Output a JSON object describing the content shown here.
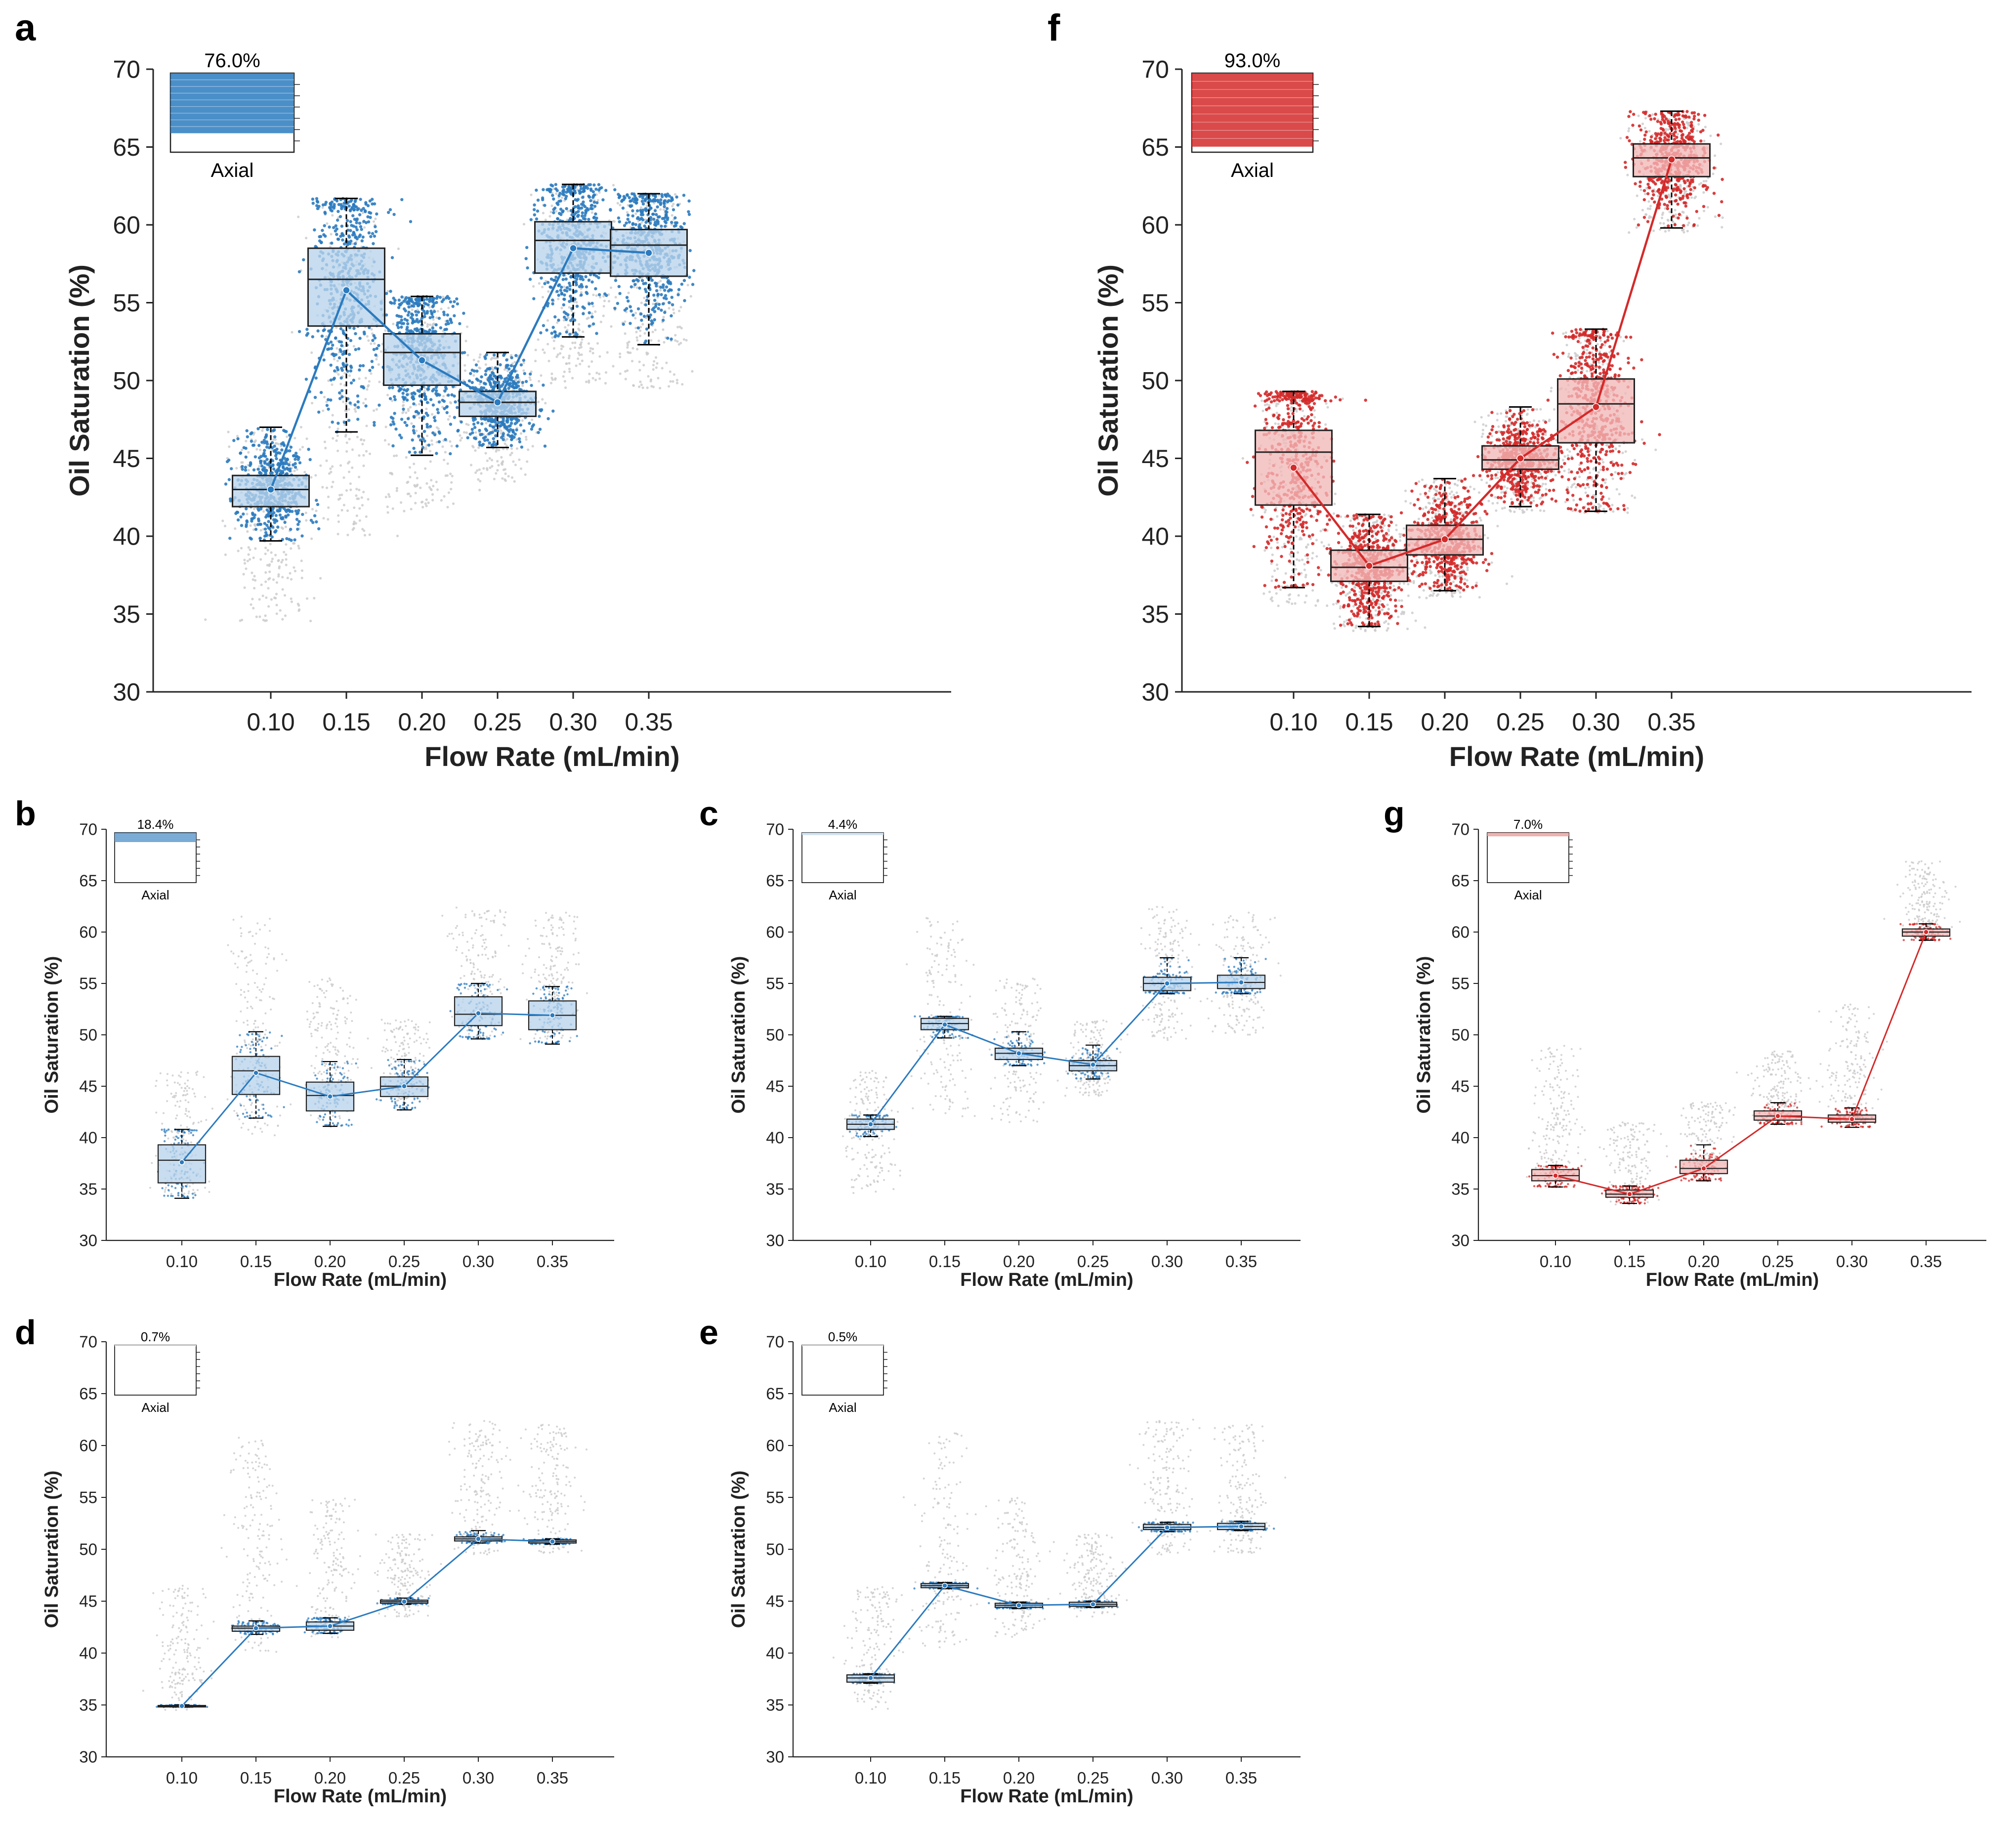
{
  "figure": {
    "colors": {
      "blue": "#2b7bbf",
      "blue_fill": "#b9d3ec",
      "red": "#d42a2a",
      "red_fill": "#f2b9b9",
      "grey": "#c9c9c9"
    }
  },
  "chart_data": [
    {
      "panel": "a",
      "type": "box",
      "color": "blue",
      "xlabel": "Flow Rate (mL/min)",
      "ylabel": "Oil Saturation (%)",
      "ylim": [
        30,
        70
      ],
      "yticks": [
        "30",
        "35",
        "40",
        "45",
        "50",
        "55",
        "60",
        "65",
        "70"
      ],
      "categories": [
        "0.10",
        "0.15",
        "0.20",
        "0.25",
        "0.30",
        "0.35"
      ],
      "inset": {
        "percent": "76.0%",
        "label": "Axial"
      },
      "boxes": [
        {
          "q1": 41.9,
          "median": 43.0,
          "q3": 43.9,
          "min": 39.7,
          "max": 47.0,
          "mean": 43.0
        },
        {
          "q1": 53.5,
          "median": 56.5,
          "q3": 58.5,
          "min": 46.7,
          "max": 61.7,
          "mean": 55.8
        },
        {
          "q1": 49.7,
          "median": 51.8,
          "q3": 53.0,
          "min": 45.2,
          "max": 55.4,
          "mean": 51.3
        },
        {
          "q1": 47.7,
          "median": 48.6,
          "q3": 49.3,
          "min": 45.7,
          "max": 51.8,
          "mean": 48.6
        },
        {
          "q1": 56.9,
          "median": 59.0,
          "q3": 60.2,
          "min": 52.8,
          "max": 62.6,
          "mean": 58.5
        },
        {
          "q1": 56.7,
          "median": 58.7,
          "q3": 59.7,
          "min": 52.3,
          "max": 62.0,
          "mean": 58.2
        }
      ],
      "grey_ranges": [
        [
          34.5,
          47.0
        ],
        [
          40.0,
          61.7
        ],
        [
          41.5,
          55.4
        ],
        [
          43.5,
          51.8
        ],
        [
          49.5,
          62.6
        ],
        [
          49.5,
          62.0
        ]
      ]
    },
    {
      "panel": "f",
      "type": "box",
      "color": "red",
      "xlabel": "Flow Rate (mL/min)",
      "ylabel": "Oil Saturation (%)",
      "ylim": [
        30,
        70
      ],
      "yticks": [
        "30",
        "35",
        "40",
        "45",
        "50",
        "55",
        "60",
        "65",
        "70"
      ],
      "categories": [
        "0.10",
        "0.15",
        "0.20",
        "0.25",
        "0.30",
        "0.35"
      ],
      "inset": {
        "percent": "93.0%",
        "label": "Axial"
      },
      "boxes": [
        {
          "q1": 42.0,
          "median": 45.4,
          "q3": 46.8,
          "min": 36.7,
          "max": 49.3,
          "mean": 44.4
        },
        {
          "q1": 37.1,
          "median": 38.0,
          "q3": 39.1,
          "min": 34.2,
          "max": 41.4,
          "mean": 38.1
        },
        {
          "q1": 38.8,
          "median": 39.8,
          "q3": 40.7,
          "min": 36.5,
          "max": 43.7,
          "mean": 39.8
        },
        {
          "q1": 44.3,
          "median": 44.9,
          "q3": 45.8,
          "min": 41.9,
          "max": 48.3,
          "mean": 45.0
        },
        {
          "q1": 46.0,
          "median": 48.5,
          "q3": 50.1,
          "min": 41.6,
          "max": 53.3,
          "mean": 48.3
        },
        {
          "q1": 63.1,
          "median": 64.3,
          "q3": 65.2,
          "min": 59.8,
          "max": 67.3,
          "mean": 64.2
        }
      ],
      "grey_ranges": [
        [
          35.5,
          49.3
        ],
        [
          33.9,
          41.4
        ],
        [
          36.0,
          43.7
        ],
        [
          41.5,
          48.3
        ],
        [
          41.5,
          53.3
        ],
        [
          59.5,
          67.3
        ]
      ]
    },
    {
      "panel": "b",
      "type": "box",
      "color": "blue",
      "xlabel": "Flow Rate (mL/min)",
      "ylabel": "Oil Saturation (%)",
      "ylim": [
        30,
        70
      ],
      "yticks": [
        "30",
        "35",
        "40",
        "45",
        "50",
        "55",
        "60",
        "65",
        "70"
      ],
      "categories": [
        "0.10",
        "0.15",
        "0.20",
        "0.25",
        "0.30",
        "0.35"
      ],
      "inset": {
        "percent": "18.4%",
        "label": "Axial"
      },
      "boxes": [
        {
          "q1": 35.6,
          "median": 37.8,
          "q3": 39.3,
          "min": 34.1,
          "max": 40.8,
          "mean": 37.6
        },
        {
          "q1": 44.2,
          "median": 46.5,
          "q3": 47.9,
          "min": 41.9,
          "max": 50.3,
          "mean": 46.3
        },
        {
          "q1": 42.6,
          "median": 44.1,
          "q3": 45.4,
          "min": 41.1,
          "max": 47.4,
          "mean": 44.0
        },
        {
          "q1": 44.0,
          "median": 45.0,
          "q3": 45.9,
          "min": 42.7,
          "max": 47.6,
          "mean": 45.0
        },
        {
          "q1": 50.9,
          "median": 52.0,
          "q3": 53.7,
          "min": 49.6,
          "max": 55.0,
          "mean": 52.1
        },
        {
          "q1": 50.5,
          "median": 51.9,
          "q3": 53.3,
          "min": 49.1,
          "max": 54.7,
          "mean": 51.9
        }
      ],
      "grey_ranges": [
        [
          34.5,
          46.5
        ],
        [
          40.0,
          61.5
        ],
        [
          41.5,
          55.5
        ],
        [
          43.5,
          51.5
        ],
        [
          49.5,
          62.5
        ],
        [
          49.5,
          62.0
        ]
      ]
    },
    {
      "panel": "c",
      "type": "box",
      "color": "blue",
      "xlabel": "Flow Rate (mL/min)",
      "ylabel": "Oil Saturation (%)",
      "ylim": [
        30,
        70
      ],
      "yticks": [
        "30",
        "35",
        "40",
        "45",
        "50",
        "55",
        "60",
        "65",
        "70"
      ],
      "categories": [
        "0.10",
        "0.15",
        "0.20",
        "0.25",
        "0.30",
        "0.35"
      ],
      "inset": {
        "percent": "4.4%",
        "label": "Axial"
      },
      "boxes": [
        {
          "q1": 40.8,
          "median": 41.3,
          "q3": 41.8,
          "min": 40.1,
          "max": 42.2,
          "mean": 41.3
        },
        {
          "q1": 50.5,
          "median": 51.1,
          "q3": 51.6,
          "min": 49.7,
          "max": 51.8,
          "mean": 51.0
        },
        {
          "q1": 47.6,
          "median": 48.2,
          "q3": 48.7,
          "min": 47.0,
          "max": 50.3,
          "mean": 48.2
        },
        {
          "q1": 46.5,
          "median": 47.0,
          "q3": 47.5,
          "min": 45.7,
          "max": 49.0,
          "mean": 47.1
        },
        {
          "q1": 54.3,
          "median": 55.0,
          "q3": 55.6,
          "min": 54.0,
          "max": 57.5,
          "mean": 55.0
        },
        {
          "q1": 54.5,
          "median": 55.1,
          "q3": 55.8,
          "min": 54.0,
          "max": 57.5,
          "mean": 55.1
        }
      ],
      "grey_ranges": [
        [
          34.5,
          46.5
        ],
        [
          42.0,
          61.5
        ],
        [
          41.5,
          55.5
        ],
        [
          44.0,
          51.5
        ],
        [
          49.5,
          62.5
        ],
        [
          50.0,
          62.0
        ]
      ]
    },
    {
      "panel": "g",
      "type": "box",
      "color": "red",
      "xlabel": "Flow Rate (mL/min)",
      "ylabel": "Oil Saturation (%)",
      "ylim": [
        30,
        70
      ],
      "yticks": [
        "30",
        "35",
        "40",
        "45",
        "50",
        "55",
        "60",
        "65",
        "70"
      ],
      "categories": [
        "0.10",
        "0.15",
        "0.20",
        "0.25",
        "0.30",
        "0.35"
      ],
      "inset": {
        "percent": "7.0%",
        "label": "Axial"
      },
      "boxes": [
        {
          "q1": 35.8,
          "median": 36.3,
          "q3": 36.9,
          "min": 35.2,
          "max": 37.3,
          "mean": 36.3
        },
        {
          "q1": 34.2,
          "median": 34.5,
          "q3": 34.9,
          "min": 33.6,
          "max": 35.3,
          "mean": 34.5
        },
        {
          "q1": 36.5,
          "median": 37.0,
          "q3": 37.8,
          "min": 35.8,
          "max": 39.3,
          "mean": 37.0
        },
        {
          "q1": 41.7,
          "median": 42.1,
          "q3": 42.6,
          "min": 41.3,
          "max": 43.4,
          "mean": 42.1
        },
        {
          "q1": 41.5,
          "median": 41.8,
          "q3": 42.2,
          "min": 41.0,
          "max": 42.9,
          "mean": 41.8
        },
        {
          "q1": 59.6,
          "median": 60.0,
          "q3": 60.3,
          "min": 59.2,
          "max": 60.8,
          "mean": 60.0
        }
      ],
      "grey_ranges": [
        [
          36.0,
          49.0
        ],
        [
          33.5,
          41.5
        ],
        [
          36.0,
          43.5
        ],
        [
          41.5,
          48.5
        ],
        [
          41.5,
          53.0
        ],
        [
          59.5,
          67.0
        ]
      ]
    },
    {
      "panel": "d",
      "type": "box",
      "color": "blue",
      "xlabel": "Flow Rate (mL/min)",
      "ylabel": "Oil Saturation (%)",
      "ylim": [
        30,
        70
      ],
      "yticks": [
        "30",
        "35",
        "40",
        "45",
        "50",
        "55",
        "60",
        "65",
        "70"
      ],
      "categories": [
        "0.10",
        "0.15",
        "0.20",
        "0.25",
        "0.30",
        "0.35"
      ],
      "inset": {
        "percent": "0.7%",
        "label": "Axial"
      },
      "boxes": [
        {
          "q1": 34.85,
          "median": 34.9,
          "q3": 34.95,
          "min": 34.8,
          "max": 35.0,
          "mean": 34.9
        },
        {
          "q1": 42.1,
          "median": 42.4,
          "q3": 42.6,
          "min": 41.8,
          "max": 43.1,
          "mean": 42.4
        },
        {
          "q1": 42.2,
          "median": 42.6,
          "q3": 43.0,
          "min": 41.9,
          "max": 43.4,
          "mean": 42.6
        },
        {
          "q1": 44.8,
          "median": 44.95,
          "q3": 45.1,
          "min": 44.7,
          "max": 45.3,
          "mean": 44.95
        },
        {
          "q1": 50.8,
          "median": 51.0,
          "q3": 51.2,
          "min": 50.6,
          "max": 51.8,
          "mean": 51.0
        },
        {
          "q1": 50.6,
          "median": 50.75,
          "q3": 50.9,
          "min": 50.5,
          "max": 51.0,
          "mean": 50.75
        }
      ],
      "grey_ranges": [
        [
          34.5,
          46.5
        ],
        [
          40.0,
          61.0
        ],
        [
          41.5,
          55.0
        ],
        [
          43.5,
          51.5
        ],
        [
          49.5,
          62.5
        ],
        [
          49.5,
          62.0
        ]
      ]
    },
    {
      "panel": "e",
      "type": "box",
      "color": "blue",
      "xlabel": "Flow Rate (mL/min)",
      "ylabel": "Oil Saturation (%)",
      "ylim": [
        30,
        70
      ],
      "yticks": [
        "30",
        "35",
        "40",
        "45",
        "50",
        "55",
        "60",
        "65",
        "70"
      ],
      "categories": [
        "0.10",
        "0.15",
        "0.20",
        "0.25",
        "0.30",
        "0.35"
      ],
      "inset": {
        "percent": "0.5%",
        "label": "Axial"
      },
      "boxes": [
        {
          "q1": 37.2,
          "median": 37.6,
          "q3": 37.9,
          "min": 37.1,
          "max": 38.0,
          "mean": 37.6
        },
        {
          "q1": 46.3,
          "median": 46.5,
          "q3": 46.7,
          "min": 46.2,
          "max": 46.8,
          "mean": 46.5
        },
        {
          "q1": 44.4,
          "median": 44.6,
          "q3": 44.8,
          "min": 44.3,
          "max": 44.9,
          "mean": 44.6
        },
        {
          "q1": 44.5,
          "median": 44.7,
          "q3": 44.9,
          "min": 44.4,
          "max": 45.0,
          "mean": 44.7
        },
        {
          "q1": 51.9,
          "median": 52.1,
          "q3": 52.4,
          "min": 51.7,
          "max": 52.6,
          "mean": 52.1
        },
        {
          "q1": 51.9,
          "median": 52.2,
          "q3": 52.5,
          "min": 51.8,
          "max": 52.7,
          "mean": 52.2
        }
      ],
      "grey_ranges": [
        [
          34.5,
          46.5
        ],
        [
          40.5,
          61.5
        ],
        [
          41.5,
          55.0
        ],
        [
          43.5,
          51.5
        ],
        [
          49.5,
          62.5
        ],
        [
          49.5,
          62.0
        ]
      ]
    }
  ]
}
